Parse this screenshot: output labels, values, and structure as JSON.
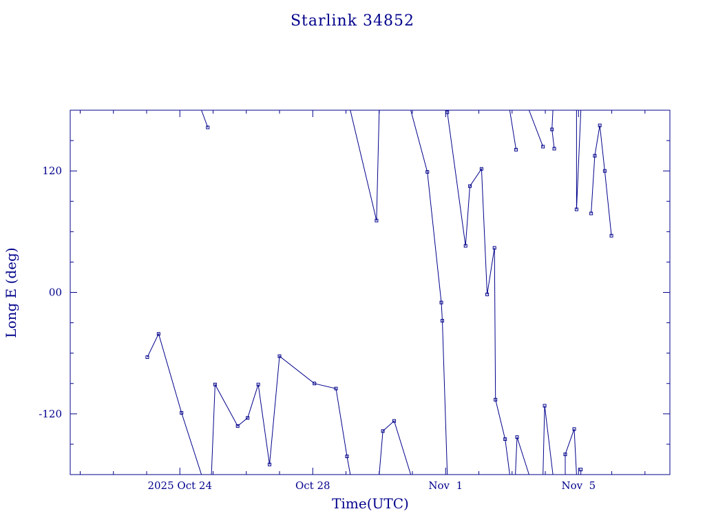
{
  "chart_data": {
    "type": "line",
    "title": "Starlink 34852",
    "xlabel": "Time(UTC)",
    "ylabel": "Long E (deg)",
    "x_units": "days since 2025-10-24 00:00 UTC",
    "xlim": [
      -3.3,
      14.75
    ],
    "ylim": [
      -180,
      180
    ],
    "x_ticks": [
      {
        "value": 0,
        "label": "2025 Oct 24"
      },
      {
        "value": 4,
        "label": "Oct 28"
      },
      {
        "value": 8,
        "label": "Nov  1"
      },
      {
        "value": 12,
        "label": "Nov  5"
      }
    ],
    "y_ticks": [
      {
        "value": 120,
        "label": "120"
      },
      {
        "value": 0,
        "label": "00"
      },
      {
        "value": -120,
        "label": "-120"
      }
    ],
    "grid": false,
    "color": "#00008b",
    "series": [
      {
        "name": "",
        "points": [
          [
            -0.98,
            -64
          ],
          [
            -0.64,
            -41
          ],
          [
            0.05,
            -119
          ],
          [
            0.65,
            -180
          ],
          [
            0.65,
            180
          ],
          [
            0.84,
            163
          ],
          [
            0.95,
            -180
          ],
          [
            1.06,
            -91
          ],
          [
            1.74,
            -132
          ],
          [
            2.04,
            -124
          ],
          [
            2.36,
            -91
          ],
          [
            2.7,
            -170
          ],
          [
            3.0,
            -63
          ],
          [
            4.05,
            -90
          ],
          [
            4.7,
            -95
          ],
          [
            5.03,
            -162
          ],
          [
            5.13,
            -180
          ],
          [
            5.13,
            180
          ],
          [
            5.92,
            71
          ],
          [
            6.0,
            180
          ],
          [
            6.0,
            -180
          ],
          [
            6.11,
            -137
          ],
          [
            6.45,
            -127
          ],
          [
            6.95,
            -180
          ],
          [
            6.95,
            180
          ],
          [
            7.45,
            119
          ],
          [
            7.87,
            -10
          ],
          [
            7.9,
            -28
          ],
          [
            8.05,
            -180
          ],
          [
            8.05,
            180
          ],
          [
            8.05,
            178
          ],
          [
            8.6,
            46
          ],
          [
            8.73,
            105
          ],
          [
            9.08,
            122
          ],
          [
            9.25,
            -2
          ],
          [
            9.47,
            44
          ],
          [
            9.5,
            -106
          ],
          [
            9.79,
            -145
          ],
          [
            9.93,
            -180
          ],
          [
            9.93,
            180
          ],
          [
            10.12,
            141
          ],
          [
            10.1,
            -180
          ],
          [
            10.15,
            -143
          ],
          [
            10.51,
            -180
          ],
          [
            10.51,
            180
          ],
          [
            10.93,
            144
          ],
          [
            10.93,
            -180
          ],
          [
            10.98,
            -112
          ],
          [
            11.23,
            -180
          ],
          [
            11.23,
            180
          ],
          [
            11.2,
            161
          ],
          [
            11.27,
            142
          ],
          [
            11.6,
            -180
          ],
          [
            11.6,
            -160
          ],
          [
            11.87,
            -135
          ],
          [
            11.94,
            -180
          ],
          [
            11.94,
            180
          ],
          [
            11.94,
            82
          ],
          [
            12.07,
            180
          ],
          [
            12.07,
            -180
          ],
          [
            12.07,
            -175
          ]
        ],
        "extra_segments": [
          [
            [
              12.38,
              78
            ],
            [
              12.49,
              135
            ],
            [
              12.64,
              165
            ],
            [
              12.79,
              120
            ],
            [
              12.99,
              56
            ]
          ]
        ]
      }
    ]
  }
}
